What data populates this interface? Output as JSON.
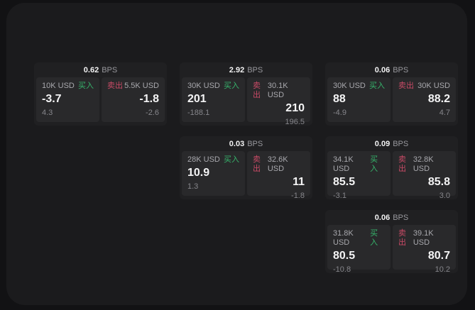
{
  "labels": {
    "bps": "BPS",
    "buy": "买入",
    "sell": "卖出"
  },
  "colors": {
    "buy_green": "#36b46b",
    "sell_red": "#c94a66",
    "panel_bg": "#1b1b1d",
    "card_bg": "#202022",
    "tile_bg": "#29292b",
    "page_bg": "#121214"
  },
  "cards": [
    {
      "bps": "0.62",
      "buy": {
        "notional": "10K USD",
        "price": "-3.7",
        "delta": "4.3"
      },
      "sell": {
        "notional": "5.5K USD",
        "price": "-1.8",
        "delta": "-2.6"
      }
    },
    {
      "bps": "2.92",
      "buy": {
        "notional": "30K USD",
        "price": "201",
        "delta": "-188.1"
      },
      "sell": {
        "notional": "30.1K USD",
        "price": "210",
        "delta": "196.5"
      }
    },
    {
      "bps": "0.03",
      "buy": {
        "notional": "28K USD",
        "price": "10.9",
        "delta": "1.3"
      },
      "sell": {
        "notional": "32.6K USD",
        "price": "11",
        "delta": "-1.8"
      }
    },
    {
      "bps": "0.06",
      "buy": {
        "notional": "30K USD",
        "price": "88",
        "delta": "-4.9"
      },
      "sell": {
        "notional": "30K USD",
        "price": "88.2",
        "delta": "4.7"
      }
    },
    {
      "bps": "0.09",
      "buy": {
        "notional": "34.1K USD",
        "price": "85.5",
        "delta": "-3.1"
      },
      "sell": {
        "notional": "32.8K USD",
        "price": "85.8",
        "delta": "3.0"
      }
    },
    {
      "bps": "0.06",
      "buy": {
        "notional": "31.8K USD",
        "price": "80.5",
        "delta": "-10.8"
      },
      "sell": {
        "notional": "39.1K USD",
        "price": "80.7",
        "delta": "10.2"
      }
    }
  ]
}
